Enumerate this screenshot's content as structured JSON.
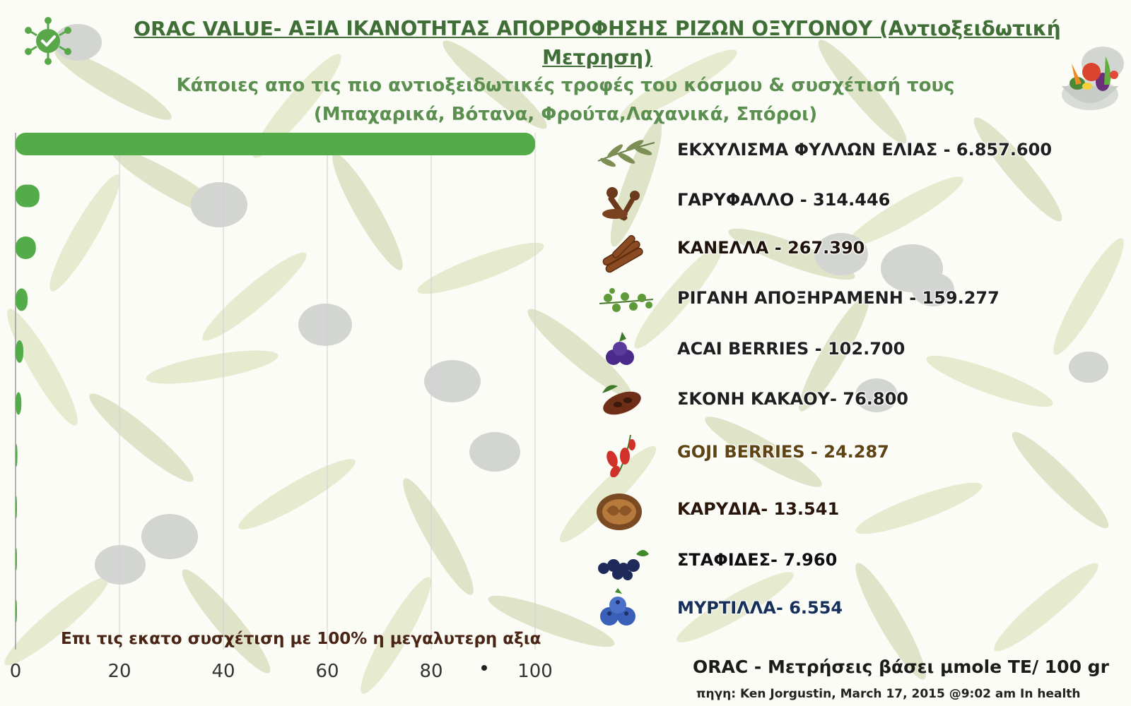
{
  "header": {
    "title": "ORAC VALUE- ΑΞΙΑ ΙΚΑΝΟΤΗΤΑΣ ΑΠΟΡΡΟΦΗΣΗΣ ΡΙΖΩΝ ΟΞΥΓΟΝΟΥ (Αντιοξειδωτική Μετρηση)",
    "subtitle": "Κάποιες απο τις πιο αντιοξειδωτικές τροφές του κόσμου & συσχέτισή τους (Μπαχαρικά, Βότανα, Φρούτα,Λαχανικά, Σπόροι)"
  },
  "chart_data": {
    "type": "bar",
    "orientation": "horizontal",
    "categories": [
      "ΕΚΧΥΛΙΣΜΑ ΦΥΛΛΩΝ ΕΛΙΑΣ",
      "ΓΑΡΥΦΑΛΛΟ",
      "ΚΑΝΕΛΛΑ",
      "ΡΙΓΑΝΗ ΑΠΟΞΗΡΑΜΕΝΗ",
      "ACAI BERRIES",
      "ΣΚΟΝΗ ΚΑΚΑΟΥ",
      "GOJI BERRIES",
      "ΚΑΡΥΔΙΑ",
      "ΣΤΑΦΙΔΕΣ",
      "ΜΥΡΤΙΛΛΑ"
    ],
    "values": [
      100,
      4.59,
      3.9,
      2.32,
      1.5,
      1.12,
      0.35,
      0.2,
      0.12,
      0.1
    ],
    "xlim": [
      0,
      100
    ],
    "xticks": [
      "0",
      "20",
      "40",
      "60",
      "80",
      "100"
    ],
    "xlabel": "Επι τις εκατο συσχέτιση με 100% η μεγαλυτερη αξια",
    "grid": true,
    "bar_color": "#54ab4a"
  },
  "legend": {
    "items": [
      {
        "label": "ΕΚΧΥΛΙΣΜΑ ΦΥΛΛΩΝ ΕΛΙΑΣ -  6.857.600",
        "icon": "olive-branch-icon",
        "color": "#1f1f1f"
      },
      {
        "label": "ΓΑΡΥΦΑΛΛΟ -  314.446",
        "icon": "clove-icon",
        "color": "#1a1a1a"
      },
      {
        "label": "ΚΑΝΕΛΛΑ -  267.390",
        "icon": "cinnamon-icon",
        "color": "#1f120b"
      },
      {
        "label": "ΡΙΓΑΝΗ ΑΠΟΞΗΡΑΜΕΝΗ -  159.277",
        "icon": "oregano-icon",
        "color": "#1f1f1f"
      },
      {
        "label": "ACAI BERRIES -  102.700",
        "icon": "acai-icon",
        "color": "#1f1f1f"
      },
      {
        "label": "ΣΚΟΝΗ ΚΑΚΑΟΥ-  76.800",
        "icon": "cocoa-icon",
        "color": "#1f1f1f"
      },
      {
        "label": "GOJI BERRIES - 24.287",
        "icon": "goji-icon",
        "color": "#5e4313"
      },
      {
        "label": "ΚΑΡΥΔΙΑ- 13.541",
        "icon": "walnut-icon",
        "color": "#2a1608"
      },
      {
        "label": "ΣΤΑΦΙΔΕΣ- 7.960",
        "icon": "raisins-icon",
        "color": "#0e0e0e"
      },
      {
        "label": "ΜΥΡΤΙΛΛΑ- 6.554",
        "icon": "blueberry-icon",
        "color": "#16305a"
      }
    ]
  },
  "footer": {
    "units": "ORAC - Μετρήσεις βάσει μmole TE/ 100 gr",
    "source": "πηγη:  Ken Jorgustin, March 17, 2015  @9:02 am In  health"
  },
  "icons": {
    "top_left": "check-badge-icon",
    "top_right": "vegetable-bowl-icon"
  }
}
